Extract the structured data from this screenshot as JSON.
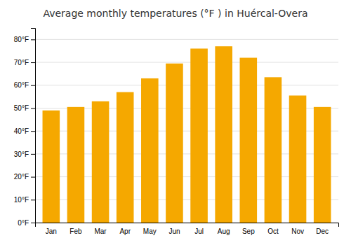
{
  "chart_data": {
    "type": "bar",
    "title": "Average monthly temperatures (°F ) in Huércal-Overa",
    "categories": [
      "Jan",
      "Feb",
      "Mar",
      "Apr",
      "May",
      "Jun",
      "Jul",
      "Aug",
      "Sep",
      "Oct",
      "Nov",
      "Dec"
    ],
    "values": [
      49,
      50.5,
      53,
      57,
      63,
      69.5,
      76,
      77,
      72,
      63.5,
      55.5,
      50.5
    ],
    "color": "#F5A800",
    "ylim": [
      0,
      85
    ],
    "yticks": [
      {
        "value": 0,
        "label": "0°F"
      },
      {
        "value": 10,
        "label": "10°F"
      },
      {
        "value": 20,
        "label": "20°F"
      },
      {
        "value": 30,
        "label": "30°F"
      },
      {
        "value": 40,
        "label": "40°F"
      },
      {
        "value": 50,
        "label": "50°F"
      },
      {
        "value": 60,
        "label": "60°F"
      },
      {
        "value": 70,
        "label": "70°F"
      },
      {
        "value": 80,
        "label": "80°F"
      }
    ],
    "grid": true
  }
}
